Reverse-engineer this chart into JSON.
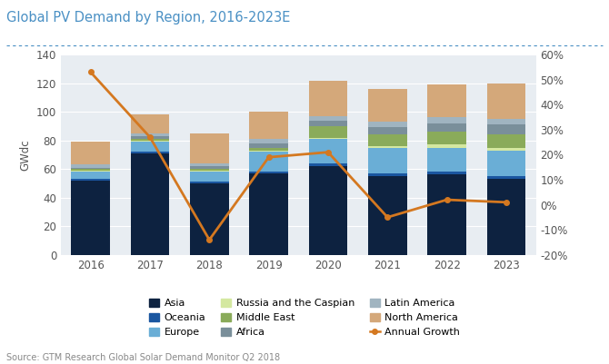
{
  "years": [
    2016,
    2017,
    2018,
    2019,
    2020,
    2021,
    2022,
    2023
  ],
  "Asia": [
    52,
    71,
    50,
    57,
    62,
    55,
    56,
    53
  ],
  "Oceania": [
    1,
    1,
    1,
    1,
    2,
    2,
    2,
    2
  ],
  "Europe": [
    5,
    7,
    7,
    14,
    17,
    18,
    17,
    18
  ],
  "Russia_Caspian": [
    1,
    1,
    1,
    1,
    1,
    1,
    2,
    2
  ],
  "Middle_East": [
    1,
    1,
    1,
    2,
    8,
    8,
    9,
    9
  ],
  "Africa": [
    1,
    2,
    2,
    3,
    4,
    5,
    6,
    7
  ],
  "Latin_America": [
    2,
    2,
    2,
    3,
    3,
    4,
    4,
    4
  ],
  "North_America": [
    16,
    13,
    21,
    19,
    25,
    23,
    23,
    25
  ],
  "annual_growth": [
    0.53,
    0.27,
    -0.14,
    0.19,
    0.21,
    -0.05,
    0.02,
    0.01
  ],
  "colors": {
    "Asia": "#0d2240",
    "Oceania": "#1a56a0",
    "Europe": "#6aaed6",
    "Russia_Caspian": "#d4e8a0",
    "Middle_East": "#8aab5a",
    "Africa": "#7a8f9a",
    "Latin_America": "#a0b4c0",
    "North_America": "#d4a87a",
    "Annual_Growth": "#d47820"
  },
  "title": "Global PV Demand by Region, 2016-2023E",
  "ylabel_left": "GWdc",
  "ylim_left": [
    0,
    140
  ],
  "ylim_right": [
    -0.2,
    0.6
  ],
  "yticks_left": [
    0,
    20,
    40,
    60,
    80,
    100,
    120,
    140
  ],
  "yticks_right": [
    -0.2,
    -0.1,
    0.0,
    0.1,
    0.2,
    0.3,
    0.4,
    0.5,
    0.6
  ],
  "ytick_labels_right": [
    "-20%",
    "-10%",
    "0%",
    "10%",
    "20%",
    "30%",
    "40%",
    "50%",
    "60%"
  ],
  "source": "Source: GTM Research Global Solar Demand Monitor Q2 2018",
  "plot_bg": "#e8edf2",
  "fig_bg": "#ffffff",
  "title_color": "#4a90c4",
  "divider_color": "#4a90c4",
  "tick_color": "#555555",
  "grid_color": "#ffffff"
}
